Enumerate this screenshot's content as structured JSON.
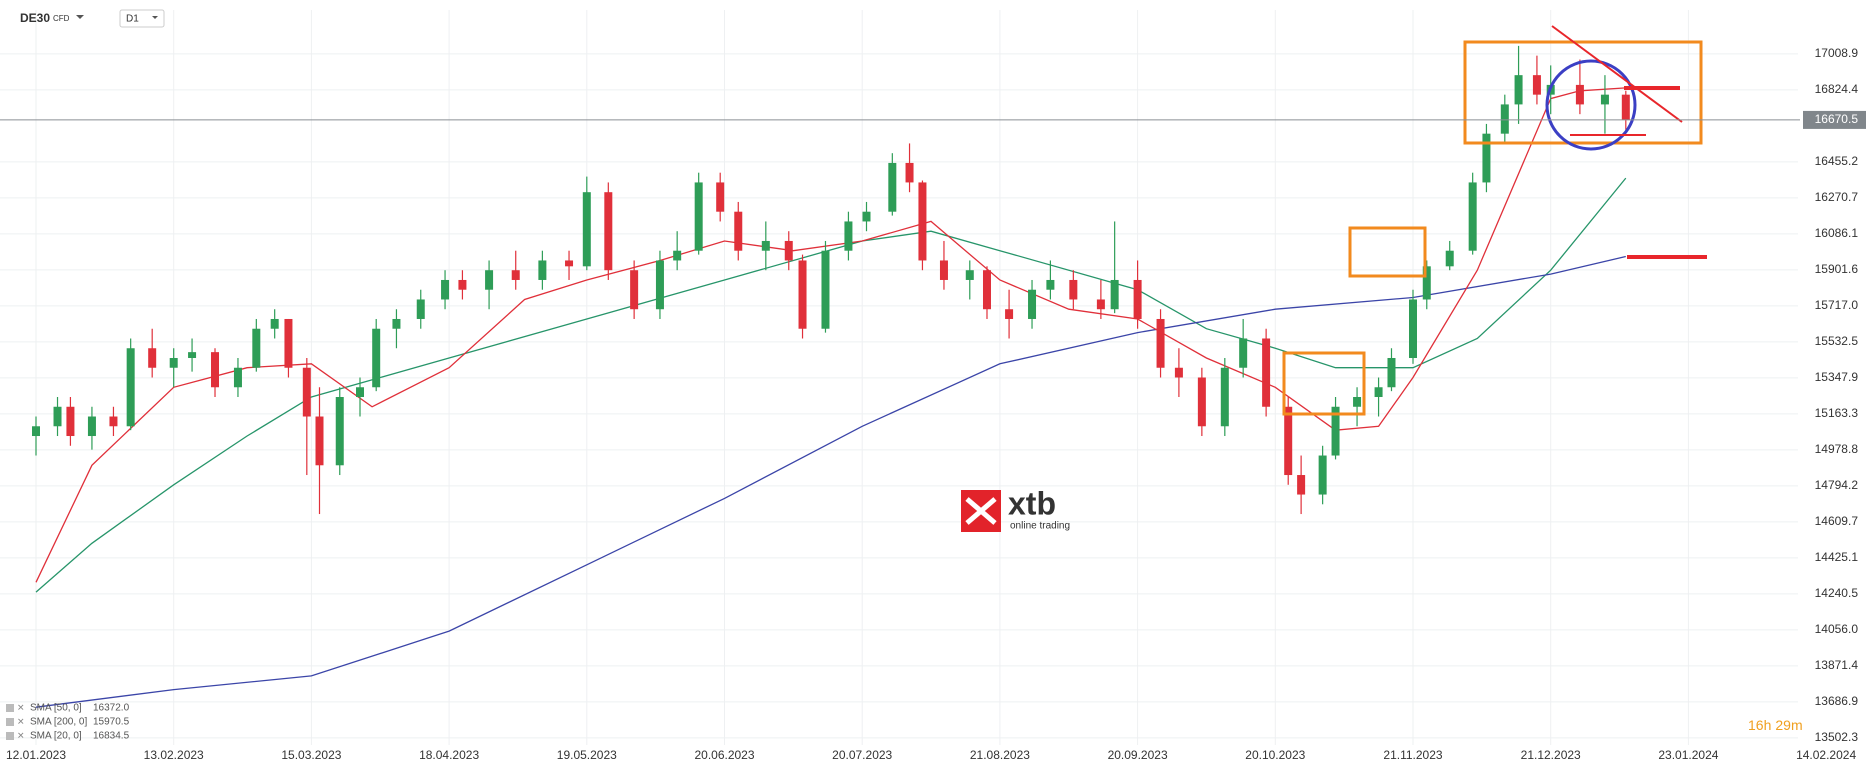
{
  "chart_data": {
    "type": "candlestick",
    "symbol": "DE30",
    "instrument": "CFD",
    "interval": "D1",
    "watermark": "xtb",
    "watermark_sub": "online trading",
    "countdown": {
      "hours": "16",
      "h": "h",
      "minutes": "29",
      "m": "m"
    },
    "last_price": 16670.5,
    "ylim": [
      13466,
      17234
    ],
    "yticks": [
      13502.3,
      13686.9,
      13871.4,
      {
        "value": 14056,
        "label": "14056.0"
      },
      14240.5,
      14425.1,
      14609.7,
      14794.2,
      14978.8,
      15163.3,
      15347.9,
      15532.5,
      {
        "value": 15717,
        "label": "15717.0"
      },
      15901.6,
      16086.1,
      16270.7,
      16455.2,
      16824.4,
      17008.9
    ],
    "xticks": [
      "12.01.2023",
      "13.02.2023",
      "15.03.2023",
      "18.04.2023",
      "19.05.2023",
      "20.06.2023",
      "20.07.2023",
      "21.08.2023",
      "20.09.2023",
      "20.10.2023",
      "21.11.2023",
      "21.12.2023",
      "23.01.2024",
      "14.02.2024"
    ],
    "grid": true,
    "up_color": "#2e9d57",
    "down_color": "#e0303a",
    "x": [
      "12.01.2023",
      "17.01.2023",
      "20.01.2023",
      "25.01.2023",
      "30.01.2023",
      "03.02.2023",
      "08.02.2023",
      "13.02.2023",
      "17.02.2023",
      "22.02.2023",
      "27.02.2023",
      "03.03.2023",
      "07.03.2023",
      "10.03.2023",
      "14.03.2023",
      "17.03.2023",
      "22.03.2023",
      "27.03.2023",
      "31.03.2023",
      "05.04.2023",
      "11.04.2023",
      "17.04.2023",
      "21.04.2023",
      "27.04.2023",
      "03.05.2023",
      "09.05.2023",
      "15.05.2023",
      "19.05.2023",
      "24.05.2023",
      "30.05.2023",
      "05.06.2023",
      "09.06.2023",
      "14.06.2023",
      "19.06.2023",
      "23.06.2023",
      "29.06.2023",
      "04.07.2023",
      "07.07.2023",
      "12.07.2023",
      "17.07.2023",
      "21.07.2023",
      "27.07.2023",
      "31.07.2023",
      "03.08.2023",
      "08.08.2023",
      "14.08.2023",
      "18.08.2023",
      "23.08.2023",
      "28.08.2023",
      "01.09.2023",
      "06.09.2023",
      "12.09.2023",
      "15.09.2023",
      "20.09.2023",
      "25.09.2023",
      "29.09.2023",
      "04.10.2023",
      "09.10.2023",
      "13.10.2023",
      "18.10.2023",
      "23.10.2023",
      "26.10.2023",
      "31.10.2023",
      "03.11.2023",
      "08.11.2023",
      "13.11.2023",
      "16.11.2023",
      "21.11.2023",
      "24.11.2023",
      "29.11.2023",
      "04.12.2023",
      "07.12.2023",
      "11.12.2023",
      "14.12.2023",
      "18.12.2023",
      "21.12.2023",
      "28.12.2023",
      "03.01.2024",
      "08.01.2024"
    ],
    "open": [
      15050,
      15100,
      15200,
      15050,
      15150,
      15100,
      15500,
      15400,
      15450,
      15480,
      15300,
      15400,
      15600,
      15650,
      15400,
      15150,
      14900,
      15250,
      15300,
      15600,
      15650,
      15750,
      15850,
      15800,
      15900,
      15850,
      15950,
      15920,
      16300,
      15900,
      15700,
      15950,
      16000,
      16350,
      16200,
      16000,
      16050,
      15950,
      15600,
      16000,
      16150,
      16200,
      16450,
      16350,
      15950,
      15850,
      15900,
      15700,
      15650,
      15800,
      15850,
      15750,
      15700,
      15850,
      15650,
      15400,
      15350,
      15100,
      15400,
      15550,
      15200,
      14850,
      14750,
      14950,
      15200,
      15250,
      15300,
      15450,
      15750,
      15920,
      16000,
      16350,
      16600,
      16750,
      16900,
      16800,
      16850,
      16750,
      16800
    ],
    "high": [
      15150,
      15250,
      15250,
      15200,
      15200,
      15550,
      15600,
      15500,
      15550,
      15500,
      15450,
      15650,
      15700,
      15650,
      15450,
      15300,
      15300,
      15350,
      15650,
      15700,
      15800,
      15900,
      15900,
      15950,
      16000,
      16000,
      16000,
      16380,
      16350,
      15950,
      16000,
      16100,
      16400,
      16400,
      16250,
      16150,
      16100,
      15980,
      16050,
      16200,
      16250,
      16500,
      16550,
      16360,
      16050,
      15950,
      15920,
      15800,
      15850,
      15950,
      15900,
      15850,
      16150,
      15950,
      15700,
      15500,
      15400,
      15450,
      15650,
      15600,
      15250,
      14950,
      15000,
      15250,
      15300,
      15350,
      15500,
      15800,
      15950,
      16050,
      16400,
      16650,
      16800,
      17050,
      17000,
      16950,
      16980,
      16900,
      16820
    ],
    "low": [
      14950,
      15050,
      15000,
      14980,
      15050,
      15080,
      15350,
      15300,
      15380,
      15250,
      15250,
      15380,
      15550,
      15350,
      14850,
      14650,
      14850,
      15150,
      15280,
      15500,
      15600,
      15700,
      15750,
      15700,
      15800,
      15800,
      15850,
      15900,
      15850,
      15650,
      15650,
      15900,
      15980,
      16150,
      15950,
      15900,
      15900,
      15550,
      15580,
      15950,
      16100,
      16180,
      16300,
      15900,
      15800,
      15750,
      15650,
      15550,
      15600,
      15750,
      15700,
      15650,
      15680,
      15600,
      15350,
      15250,
      15050,
      15050,
      15350,
      15150,
      14800,
      14650,
      14700,
      14930,
      15100,
      15150,
      15280,
      15420,
      15700,
      15900,
      15980,
      16300,
      16550,
      16650,
      16750,
      16700,
      16700,
      16600,
      16620
    ],
    "close": [
      15100,
      15200,
      15050,
      15150,
      15100,
      15500,
      15400,
      15450,
      15480,
      15300,
      15400,
      15600,
      15650,
      15400,
      15150,
      14900,
      15250,
      15300,
      15600,
      15650,
      15750,
      15850,
      15800,
      15900,
      15850,
      15950,
      15920,
      16300,
      15900,
      15700,
      15950,
      16000,
      16350,
      16200,
      16000,
      16050,
      15950,
      15600,
      16000,
      16150,
      16200,
      16450,
      16350,
      15950,
      15850,
      15900,
      15700,
      15650,
      15800,
      15850,
      15750,
      15700,
      15850,
      15650,
      15400,
      15350,
      15100,
      15400,
      15550,
      15200,
      14850,
      14750,
      14950,
      15200,
      15250,
      15300,
      15450,
      15750,
      15920,
      16000,
      16350,
      16600,
      16750,
      16900,
      16800,
      16850,
      16750,
      16800,
      16670.5
    ],
    "series": [
      {
        "name": "SMA [50, 0]",
        "color": "#27956a",
        "legend_value": {
          "value": 16372,
          "label": "16372.0"
        },
        "x": [
          "12.01.2023",
          "25.01.2023",
          "13.02.2023",
          "01.03.2023",
          "15.03.2023",
          "18.04.2023",
          "19.05.2023",
          "20.06.2023",
          "20.07.2023",
          "05.08.2023",
          "21.08.2023",
          "20.09.2023",
          "05.10.2023",
          "20.10.2023",
          "03.11.2023",
          "21.11.2023",
          "05.12.2023",
          "21.12.2023",
          "08.01.2024"
        ],
        "values": [
          14250,
          14500,
          14800,
          15050,
          15250,
          15450,
          15650,
          15850,
          16050,
          16100,
          16000,
          15800,
          15600,
          15500,
          15400,
          15400,
          15550,
          15900,
          16372
        ]
      },
      {
        "name": "SMA [200, 0]",
        "color": "#3b45a8",
        "legend_value": 15970.5,
        "x": [
          "12.01.2023",
          "13.02.2023",
          "15.03.2023",
          "18.04.2023",
          "19.05.2023",
          "20.06.2023",
          "20.07.2023",
          "21.08.2023",
          "20.09.2023",
          "20.10.2023",
          "21.11.2023",
          "21.12.2023",
          "08.01.2024"
        ],
        "values": [
          13660,
          13750,
          13820,
          14050,
          14390,
          14730,
          15100,
          15420,
          15580,
          15700,
          15760,
          15880,
          15970.5
        ]
      },
      {
        "name": "SMA [20, 0]",
        "color": "#e0303a",
        "legend_value": 16834.5,
        "x": [
          "12.01.2023",
          "25.01.2023",
          "13.02.2023",
          "01.03.2023",
          "15.03.2023",
          "30.03.2023",
          "18.04.2023",
          "05.05.2023",
          "19.05.2023",
          "05.06.2023",
          "20.06.2023",
          "05.07.2023",
          "20.07.2023",
          "05.08.2023",
          "21.08.2023",
          "05.09.2023",
          "20.09.2023",
          "05.10.2023",
          "20.10.2023",
          "03.11.2023",
          "13.11.2023",
          "21.11.2023",
          "05.12.2023",
          "21.12.2023",
          "28.12.2023",
          "08.01.2024"
        ],
        "values": [
          14300,
          14900,
          15300,
          15400,
          15420,
          15200,
          15400,
          15750,
          15850,
          15950,
          16050,
          16000,
          16050,
          16150,
          15850,
          15700,
          15650,
          15450,
          15300,
          15080,
          15100,
          15350,
          15900,
          16780,
          16820,
          16834.5
        ]
      }
    ]
  }
}
